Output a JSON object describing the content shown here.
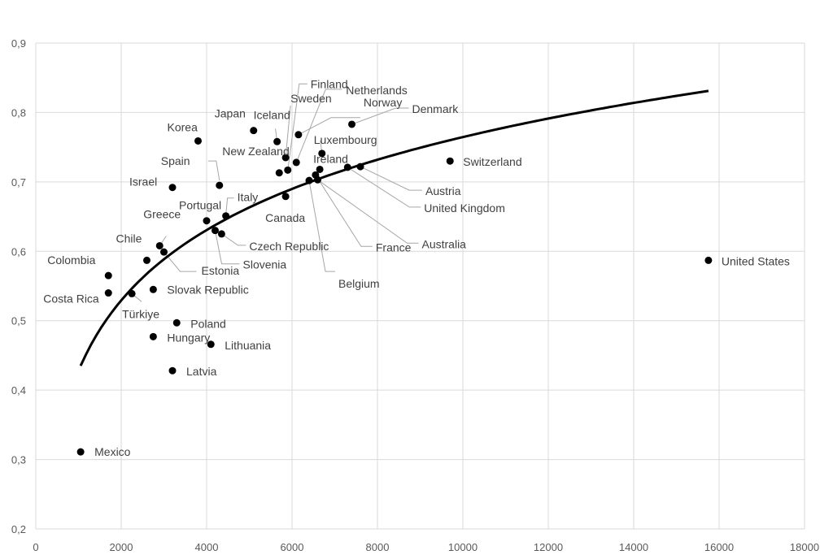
{
  "chart_data": {
    "type": "scatter",
    "title": "",
    "xlabel": "",
    "ylabel": "",
    "xlim": [
      0,
      18000
    ],
    "ylim": [
      0.2,
      0.9
    ],
    "x_ticks": [
      "0",
      "2000",
      "4000",
      "6000",
      "8000",
      "10000",
      "12000",
      "14000",
      "16000",
      "18000"
    ],
    "y_ticks": [
      "0,2",
      "0,3",
      "0,4",
      "0,5",
      "0,6",
      "0,7",
      "0,8",
      "0,9"
    ],
    "grid": true,
    "legend": "none",
    "trendline": {
      "type": "logarithmic",
      "x_range": [
        1050,
        15750
      ],
      "points": [
        [
          1050,
          0.435
        ],
        [
          2000,
          0.555
        ],
        [
          4000,
          0.648
        ],
        [
          6000,
          0.695
        ],
        [
          8000,
          0.737
        ],
        [
          10000,
          0.767
        ],
        [
          12000,
          0.792
        ],
        [
          14000,
          0.813
        ],
        [
          15750,
          0.831
        ]
      ]
    },
    "points": [
      {
        "label": "Mexico",
        "x": 1050,
        "y": 0.311
      },
      {
        "label": "Colombia",
        "x": 1700,
        "y": 0.565
      },
      {
        "label": "Costa Rica",
        "x": 1700,
        "y": 0.54
      },
      {
        "label": "Türkiye",
        "x": 2250,
        "y": 0.539
      },
      {
        "label": "Chile",
        "x": 2600,
        "y": 0.587
      },
      {
        "label": "Slovak Republic",
        "x": 2750,
        "y": 0.545
      },
      {
        "label": "Hungary",
        "x": 2750,
        "y": 0.477
      },
      {
        "label": "Greece",
        "x": 2900,
        "y": 0.608
      },
      {
        "label": "Estonia",
        "x": 3000,
        "y": 0.599
      },
      {
        "label": "Israel",
        "x": 3200,
        "y": 0.692
      },
      {
        "label": "Latvia",
        "x": 3200,
        "y": 0.428
      },
      {
        "label": "Poland",
        "x": 3300,
        "y": 0.497
      },
      {
        "label": "Korea",
        "x": 3800,
        "y": 0.759
      },
      {
        "label": "Portugal",
        "x": 4000,
        "y": 0.644
      },
      {
        "label": "Lithuania",
        "x": 4100,
        "y": 0.466
      },
      {
        "label": "Slovenia",
        "x": 4200,
        "y": 0.63
      },
      {
        "label": "Spain",
        "x": 4300,
        "y": 0.695
      },
      {
        "label": "Czech Republic",
        "x": 4350,
        "y": 0.625
      },
      {
        "label": "Italy",
        "x": 4450,
        "y": 0.651
      },
      {
        "label": "Japan",
        "x": 5100,
        "y": 0.774
      },
      {
        "label": "Iceland",
        "x": 5650,
        "y": 0.758
      },
      {
        "label": "New Zealand",
        "x": 5700,
        "y": 0.713
      },
      {
        "label": "Canada",
        "x": 5850,
        "y": 0.679
      },
      {
        "label": "Sweden",
        "x": 5850,
        "y": 0.735
      },
      {
        "label": "Finland",
        "x": 5900,
        "y": 0.717
      },
      {
        "label": "Netherlands",
        "x": 6100,
        "y": 0.728
      },
      {
        "label": "Norway",
        "x": 6150,
        "y": 0.768
      },
      {
        "label": "Belgium",
        "x": 6400,
        "y": 0.702
      },
      {
        "label": "France",
        "x": 6550,
        "y": 0.71
      },
      {
        "label": "Australia",
        "x": 6600,
        "y": 0.703
      },
      {
        "label": "Ireland",
        "x": 6650,
        "y": 0.718
      },
      {
        "label": "Luxembourg",
        "x": 6700,
        "y": 0.741
      },
      {
        "label": "United Kingdom",
        "x": 7300,
        "y": 0.721
      },
      {
        "label": "Denmark",
        "x": 7400,
        "y": 0.783
      },
      {
        "label": "Austria",
        "x": 7600,
        "y": 0.722
      },
      {
        "label": "Switzerland",
        "x": 9700,
        "y": 0.73
      },
      {
        "label": "United States",
        "x": 15750,
        "y": 0.587
      }
    ]
  }
}
